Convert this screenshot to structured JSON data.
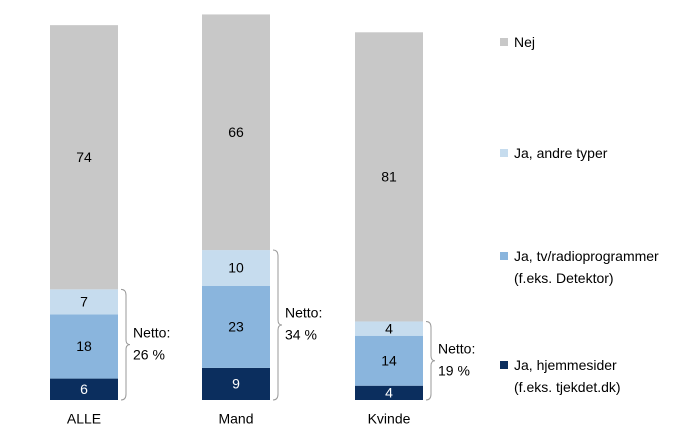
{
  "chart_data": {
    "type": "stacked_bar",
    "categories": [
      "ALLE",
      "Mand",
      "Kvinde"
    ],
    "series": [
      {
        "name": "Ja, hjemmesider\n(f.eks. tjekdet.dk)",
        "color": "#0b2e5e",
        "values": [
          6,
          9,
          4
        ]
      },
      {
        "name": "Ja, tv/radioprogrammer\n(f.eks. Detektor)",
        "color": "#8ab5dd",
        "values": [
          18,
          23,
          14
        ]
      },
      {
        "name": "Ja, andre typer",
        "color": "#c6dcee",
        "values": [
          7,
          10,
          4
        ]
      },
      {
        "name": "Nej",
        "color": "#c8c8c8",
        "values": [
          74,
          66,
          81
        ]
      }
    ],
    "annotations": [
      {
        "lines": [
          "Netto:",
          "26 %"
        ]
      },
      {
        "lines": [
          "Netto:",
          "34 %"
        ]
      },
      {
        "lines": [
          "Netto:",
          "19 %"
        ]
      }
    ]
  }
}
